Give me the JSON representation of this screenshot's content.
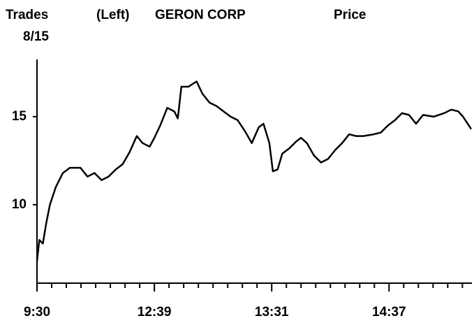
{
  "chart_data": {
    "type": "line",
    "title": "GERON CORP",
    "header": [
      "Trades",
      "(Left)",
      "Price"
    ],
    "date": "8/15",
    "color": "#000000",
    "x": [
      0,
      2,
      5,
      8,
      11,
      16,
      22,
      28,
      37,
      43,
      49,
      55,
      61,
      67,
      73,
      79,
      85,
      90,
      96,
      100,
      105,
      111,
      117,
      120,
      123,
      129,
      136,
      141,
      147,
      153,
      159,
      165,
      171,
      177,
      183,
      189,
      193,
      198,
      201,
      205,
      209,
      215,
      221,
      225,
      230,
      236,
      242,
      248,
      254,
      260,
      266,
      272,
      278,
      287,
      293,
      299,
      305,
      311,
      317,
      323,
      329,
      338,
      347,
      353,
      359,
      363,
      370
    ],
    "series": [
      {
        "name": "Price",
        "values": [
          6.8,
          8.0,
          7.8,
          9.0,
          10.0,
          11.0,
          11.8,
          12.1,
          12.1,
          11.6,
          11.8,
          11.4,
          11.6,
          12.0,
          12.3,
          13.0,
          13.9,
          13.5,
          13.3,
          13.8,
          14.5,
          15.5,
          15.3,
          14.9,
          16.7,
          16.7,
          17.0,
          16.3,
          15.8,
          15.6,
          15.3,
          15.0,
          14.8,
          14.2,
          13.5,
          14.4,
          14.6,
          13.5,
          11.9,
          12.0,
          12.9,
          13.2,
          13.6,
          13.8,
          13.5,
          12.8,
          12.4,
          12.6,
          13.1,
          13.5,
          14.0,
          13.9,
          13.9,
          14.0,
          14.1,
          14.5,
          14.8,
          15.2,
          15.1,
          14.6,
          15.1,
          15.0,
          15.2,
          15.4,
          15.3,
          15.0,
          14.3
        ]
      }
    ],
    "xlim": [
      0,
      370
    ],
    "xticks": [
      {
        "value": 0,
        "label": "9:30"
      },
      {
        "value": 100,
        "label": "12:39"
      },
      {
        "value": 200,
        "label": "13:31"
      },
      {
        "value": 300,
        "label": "14:37"
      }
    ],
    "xticks_minor": [
      12.5,
      25,
      37.5,
      50,
      62.5,
      75,
      87.5,
      112.5,
      125,
      137.5,
      150,
      162.5,
      175,
      187.5,
      212.5,
      225,
      237.5,
      250,
      262.5,
      275,
      287.5,
      312.5,
      325,
      337.5,
      350,
      362.5
    ],
    "ylim": [
      5.55,
      18.25
    ],
    "yticks": [
      10,
      15
    ],
    "grid": false
  }
}
